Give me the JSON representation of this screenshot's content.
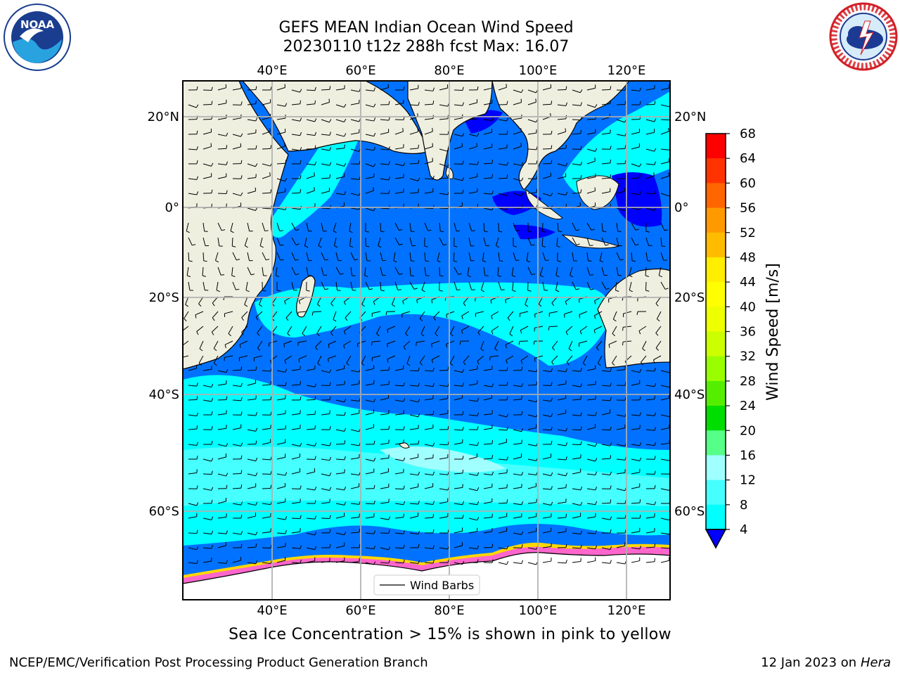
{
  "header": {
    "title_line1": "GEFS MEAN Indian Ocean Wind Speed",
    "title_line2": "20230110 t12z 288h fcst   Max: 16.07"
  },
  "logos": {
    "left_icon": "noaa-logo",
    "right_icon": "national-weather-service-logo"
  },
  "map": {
    "lon_top_labels": [
      "40°E",
      "60°E",
      "80°E",
      "100°E",
      "120°E"
    ],
    "lon_bottom_labels": [
      "40°E",
      "60°E",
      "80°E",
      "100°E",
      "120°E"
    ],
    "lat_labels": [
      "20°N",
      "0°",
      "20°S",
      "40°S",
      "60°S"
    ],
    "lat_labels_right": [
      "20°N",
      "0°",
      "20°S",
      "40°S",
      "60°S"
    ],
    "legend_label": "Wind Barbs",
    "colors": {
      "land": "#efefe0",
      "ocean_dark": "#0000ff",
      "ocean_4_8": "#0072ff",
      "ocean_8_12": "#00ffff",
      "ocean_12_16": "#46ffff",
      "ocean_16_20": "#a0ffff",
      "ice": "#ff66cc",
      "ice_edge": "#ffd700"
    }
  },
  "colorbar": {
    "label": "Wind Speed [m/s]",
    "ticks": [
      "68",
      "64",
      "60",
      "56",
      "52",
      "48",
      "44",
      "40",
      "36",
      "32",
      "28",
      "24",
      "20",
      "16",
      "12",
      "8",
      "4"
    ],
    "colors": [
      "#ff0000",
      "#ff3300",
      "#ff6600",
      "#ff9900",
      "#ffbb00",
      "#ffee00",
      "#ffff00",
      "#eeff00",
      "#ccff00",
      "#99ff00",
      "#55ee00",
      "#00dd00",
      "#55ff88",
      "#a0ffff",
      "#46ffff",
      "#00ffff",
      "#0072ff"
    ],
    "under_color": "#0000ff"
  },
  "caption": "Sea Ice Concentration > 15% is shown in pink to yellow",
  "footer": {
    "left": "NCEP/EMC/Verification Post Processing Product Generation Branch",
    "right_prefix": "12 Jan 2023 on ",
    "right_host": "Hera"
  }
}
